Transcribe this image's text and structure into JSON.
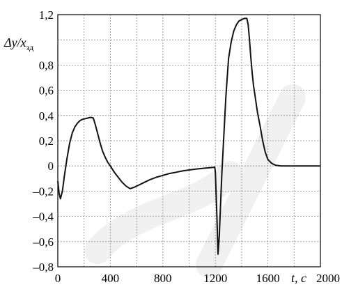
{
  "chart_data": {
    "type": "line",
    "title": "",
    "ylabel": "Δy/xзд",
    "ylabel_parts": {
      "main": "Δy/x",
      "sub": "зд"
    },
    "xlabel": "t, c",
    "xlim": [
      0,
      2000
    ],
    "ylim": [
      -0.8,
      1.2
    ],
    "grid": true,
    "x_ticks": [
      0,
      200,
      400,
      600,
      800,
      1000,
      1200,
      1400,
      1600,
      1800,
      2000
    ],
    "x_tick_labels": [
      "0",
      "",
      "400",
      "",
      "800",
      "",
      "1200",
      "",
      "1600",
      "",
      "2000"
    ],
    "y_ticks": [
      -0.8,
      -0.6,
      -0.4,
      -0.2,
      0,
      0.2,
      0.4,
      0.6,
      0.8,
      1.0,
      1.2
    ],
    "y_tick_labels": [
      "–0,8",
      "–0,6",
      "–0,4",
      "–0,2",
      "0",
      "0,2",
      "0,4",
      "0,6",
      "0,8",
      "",
      "1,2"
    ],
    "series": [
      {
        "x": [
          0,
          10,
          20,
          35,
          50,
          70,
          90,
          110,
          130,
          150,
          170,
          190,
          210,
          230,
          250,
          270,
          285,
          300,
          320,
          340,
          360,
          380,
          400,
          430,
          460,
          490,
          520,
          550,
          580,
          620,
          660,
          700,
          750,
          800,
          850,
          900,
          950,
          1000,
          1050,
          1100,
          1150,
          1180,
          1195,
          1200,
          1210,
          1220,
          1230,
          1240,
          1250,
          1260,
          1270,
          1280,
          1290,
          1300,
          1320,
          1340,
          1360,
          1380,
          1400,
          1420,
          1440,
          1450,
          1460,
          1470,
          1480,
          1490,
          1500,
          1520,
          1540,
          1560,
          1580,
          1600,
          1630,
          1660,
          1700,
          1750,
          1800,
          1900,
          2000
        ],
        "y": [
          -0.12,
          -0.22,
          -0.26,
          -0.2,
          -0.08,
          0.06,
          0.18,
          0.26,
          0.31,
          0.34,
          0.36,
          0.37,
          0.375,
          0.38,
          0.385,
          0.38,
          0.33,
          0.27,
          0.19,
          0.12,
          0.07,
          0.03,
          0.0,
          -0.05,
          -0.09,
          -0.13,
          -0.16,
          -0.18,
          -0.17,
          -0.15,
          -0.13,
          -0.11,
          -0.09,
          -0.075,
          -0.06,
          -0.05,
          -0.04,
          -0.032,
          -0.025,
          -0.02,
          -0.015,
          -0.012,
          -0.01,
          -0.05,
          -0.35,
          -0.7,
          -0.55,
          -0.3,
          -0.05,
          0.15,
          0.35,
          0.55,
          0.7,
          0.85,
          0.98,
          1.07,
          1.12,
          1.15,
          1.16,
          1.17,
          1.17,
          1.12,
          1.0,
          0.86,
          0.74,
          0.64,
          0.57,
          0.43,
          0.32,
          0.2,
          0.11,
          0.05,
          0.02,
          0.005,
          0.0,
          0.0,
          0.0,
          0.0,
          0.0
        ]
      }
    ]
  }
}
